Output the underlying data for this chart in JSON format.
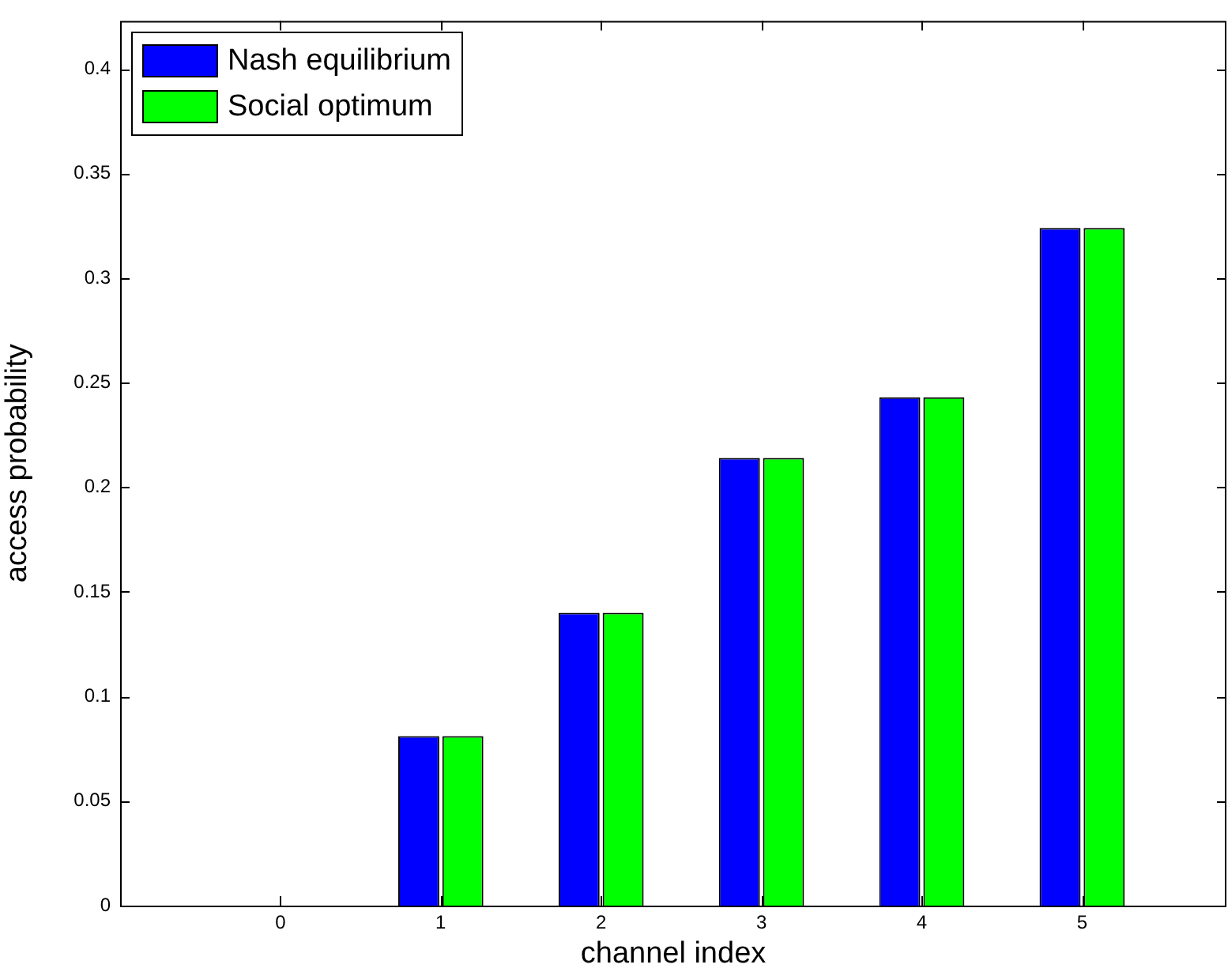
{
  "chart_data": {
    "type": "bar",
    "xlabel": "channel index",
    "ylabel": "access probability",
    "x": [
      0,
      1,
      2,
      3,
      4,
      5
    ],
    "series": [
      {
        "name": "Nash equilibrium",
        "color": "#0000ff",
        "values": [
          0,
          0.081,
          0.14,
          0.214,
          0.243,
          0.324
        ]
      },
      {
        "name": "Social optimum",
        "color": "#00ff00",
        "values": [
          0,
          0.081,
          0.14,
          0.214,
          0.243,
          0.324
        ]
      }
    ],
    "xlim": [
      -1,
      5.9
    ],
    "xticks": [
      0,
      1,
      2,
      3,
      4,
      5
    ],
    "ylim": [
      0,
      0.423
    ],
    "yticks": [
      0,
      0.05,
      0.1,
      0.15,
      0.2,
      0.25,
      0.3,
      0.35,
      0.4
    ],
    "legend": "top left",
    "grid": false
  }
}
